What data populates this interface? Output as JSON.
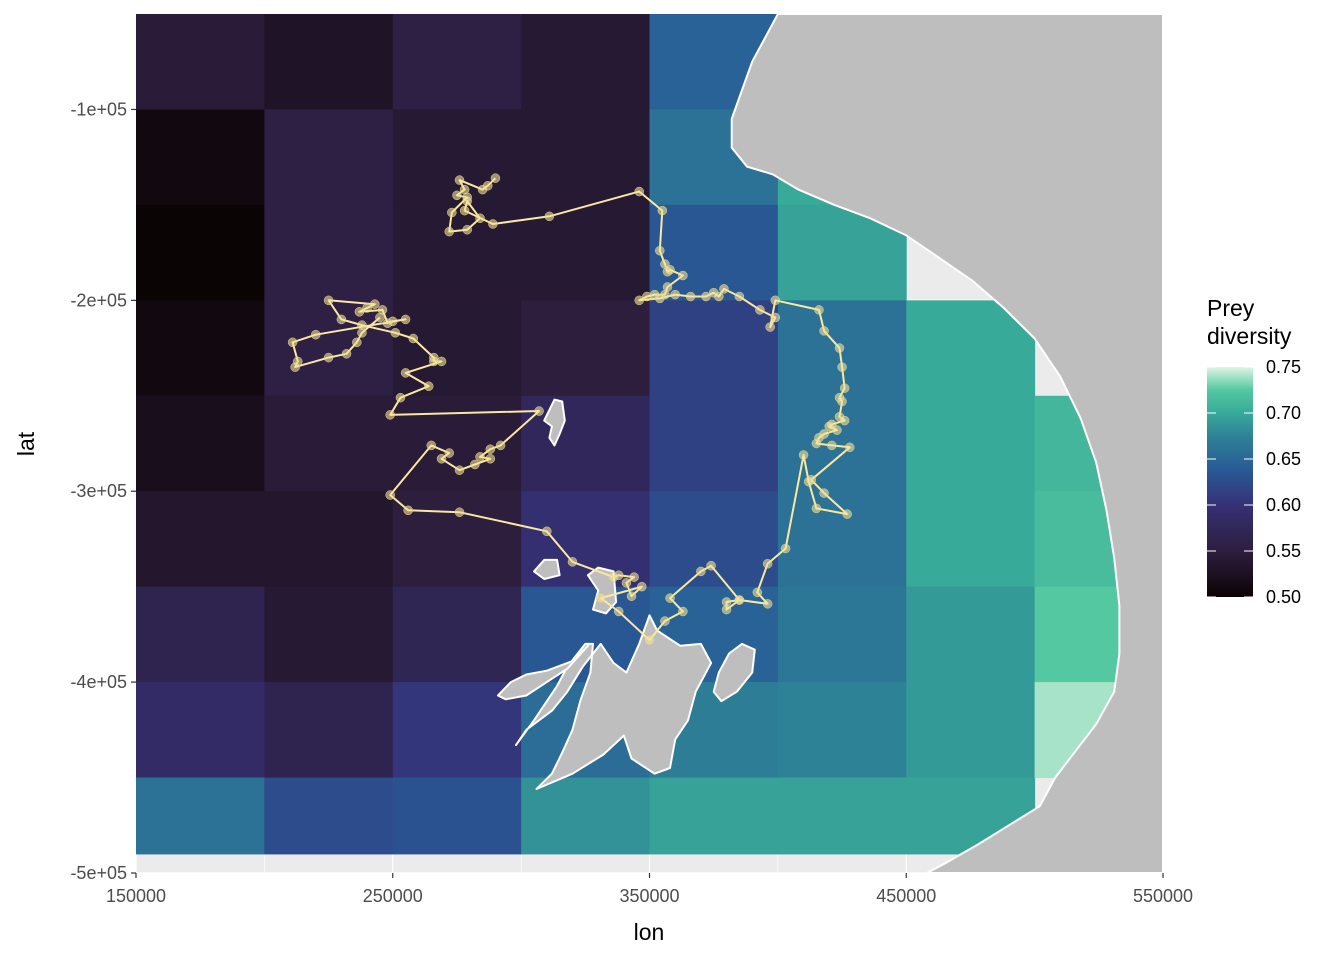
{
  "chart_data": {
    "type": "heatmap",
    "xlabel": "lon",
    "ylabel": "lat",
    "xlim": [
      150000,
      550000
    ],
    "ylim": [
      -500000,
      -50000
    ],
    "x_ticks": [
      150000,
      250000,
      350000,
      450000,
      550000
    ],
    "x_tick_labels": [
      "150000",
      "250000",
      "350000",
      "450000",
      "550000"
    ],
    "y_ticks": [
      -100000,
      -200000,
      -300000,
      -400000,
      -500000
    ],
    "y_tick_labels": [
      "-1e+05",
      "-2e+05",
      "-3e+05",
      "-4e+05",
      "-5e+05"
    ],
    "grid": true,
    "legend": {
      "title": "Prey\ndiversity",
      "position": "right",
      "breaks": [
        0.75,
        0.7,
        0.65,
        0.6,
        0.55,
        0.5
      ],
      "labels": [
        "0.75",
        "0.70",
        "0.65",
        "0.60",
        "0.55",
        "0.50"
      ],
      "range": [
        0.5,
        0.75
      ],
      "palette": "mako"
    },
    "raster": {
      "x_edges": [
        150000,
        200000,
        250000,
        300000,
        350000,
        400000,
        450000,
        500000
      ],
      "y_edges": [
        -50000,
        -100000,
        -150000,
        -200000,
        -250000,
        -300000,
        -350000,
        -400000,
        -450000,
        -490000
      ],
      "values": [
        [
          0.545,
          0.53,
          0.555,
          0.54,
          0.645,
          0.7,
          null
        ],
        [
          0.51,
          0.555,
          0.54,
          0.54,
          0.66,
          0.7,
          null
        ],
        [
          0.5,
          0.555,
          0.54,
          0.54,
          0.635,
          0.695,
          null
        ],
        [
          0.51,
          0.555,
          0.54,
          0.55,
          0.615,
          0.66,
          0.7
        ],
        [
          0.52,
          0.545,
          0.545,
          0.575,
          0.615,
          0.66,
          0.7
        ],
        [
          0.535,
          0.535,
          0.55,
          0.595,
          0.625,
          0.66,
          0.7
        ],
        [
          0.565,
          0.54,
          0.57,
          0.635,
          0.645,
          0.665,
          0.69
        ],
        [
          0.585,
          0.565,
          0.605,
          0.655,
          0.67,
          0.675,
          0.69
        ],
        [
          0.66,
          0.625,
          0.63,
          0.685,
          0.695,
          0.695,
          0.695
        ]
      ],
      "extra_cells": [
        {
          "x": [
            500000,
            550000
          ],
          "y": [
            -250000,
            -300000
          ],
          "value": 0.71
        },
        {
          "x": [
            500000,
            550000
          ],
          "y": [
            -300000,
            -350000
          ],
          "value": 0.715
        },
        {
          "x": [
            500000,
            550000
          ],
          "y": [
            -350000,
            -400000
          ],
          "value": 0.725
        },
        {
          "x": [
            500000,
            550000
          ],
          "y": [
            -400000,
            -450000
          ],
          "value": 0.74
        }
      ]
    },
    "land_polygons": [
      {
        "name": "coast",
        "points": [
          [
            400000,
            -50000
          ],
          [
            396000,
            -60000
          ],
          [
            390000,
            -75000
          ],
          [
            386000,
            -90000
          ],
          [
            382000,
            -105000
          ],
          [
            382000,
            -120000
          ],
          [
            388000,
            -130000
          ],
          [
            398000,
            -134000
          ],
          [
            408000,
            -142000
          ],
          [
            422000,
            -150000
          ],
          [
            436000,
            -157000
          ],
          [
            450000,
            -166000
          ],
          [
            462000,
            -177000
          ],
          [
            476000,
            -190000
          ],
          [
            488000,
            -204000
          ],
          [
            500000,
            -220000
          ],
          [
            510000,
            -240000
          ],
          [
            518000,
            -262000
          ],
          [
            524000,
            -285000
          ],
          [
            528000,
            -310000
          ],
          [
            531000,
            -335000
          ],
          [
            533000,
            -360000
          ],
          [
            533000,
            -385000
          ],
          [
            531000,
            -405000
          ],
          [
            524000,
            -422000
          ],
          [
            516000,
            -436000
          ],
          [
            508000,
            -450000
          ],
          [
            502000,
            -465000
          ],
          [
            490000,
            -475000
          ],
          [
            478000,
            -485000
          ],
          [
            465000,
            -495000
          ],
          [
            458000,
            -500000
          ],
          [
            550000,
            -500000
          ],
          [
            550000,
            -50000
          ]
        ]
      },
      {
        "name": "island-1",
        "points": [
          [
            313000,
            -252000
          ],
          [
            316000,
            -253000
          ],
          [
            317000,
            -263000
          ],
          [
            315000,
            -270000
          ],
          [
            313000,
            -276000
          ],
          [
            311000,
            -272000
          ],
          [
            312000,
            -266000
          ],
          [
            309000,
            -263000
          ]
        ]
      },
      {
        "name": "island-2",
        "points": [
          [
            309000,
            -336000
          ],
          [
            314000,
            -336000
          ],
          [
            315000,
            -344000
          ],
          [
            309000,
            -346000
          ],
          [
            305000,
            -342000
          ]
        ]
      },
      {
        "name": "island-3",
        "points": [
          [
            330000,
            -340000
          ],
          [
            336000,
            -342000
          ],
          [
            337000,
            -358000
          ],
          [
            333000,
            -364000
          ],
          [
            328000,
            -362000
          ],
          [
            330000,
            -352000
          ],
          [
            326000,
            -344000
          ]
        ]
      },
      {
        "name": "island-4",
        "points": [
          [
            325000,
            -380000
          ],
          [
            328000,
            -380000
          ],
          [
            327000,
            -395000
          ],
          [
            323000,
            -410000
          ],
          [
            320000,
            -425000
          ],
          [
            316000,
            -437000
          ],
          [
            312000,
            -448000
          ],
          [
            306000,
            -456000
          ],
          [
            320000,
            -448000
          ],
          [
            332000,
            -438000
          ],
          [
            340000,
            -428000
          ],
          [
            343000,
            -440000
          ],
          [
            352000,
            -448000
          ],
          [
            358000,
            -445000
          ],
          [
            360000,
            -430000
          ],
          [
            365000,
            -420000
          ],
          [
            368000,
            -405000
          ],
          [
            374000,
            -390000
          ],
          [
            370000,
            -380000
          ],
          [
            362000,
            -381000
          ],
          [
            353000,
            -373000
          ],
          [
            350000,
            -365000
          ],
          [
            346000,
            -380000
          ],
          [
            341000,
            -395000
          ],
          [
            336000,
            -390000
          ],
          [
            331000,
            -380000
          ],
          [
            324000,
            -392000
          ],
          [
            318000,
            -405000
          ],
          [
            312000,
            -415000
          ],
          [
            302000,
            -425000
          ],
          [
            298000,
            -433000
          ],
          [
            305000,
            -420000
          ],
          [
            314000,
            -402000
          ],
          [
            318000,
            -392000
          ]
        ]
      },
      {
        "name": "island-5",
        "points": [
          [
            326000,
            -381000
          ],
          [
            320000,
            -389000
          ],
          [
            310000,
            -394000
          ],
          [
            302000,
            -396000
          ],
          [
            296000,
            -400000
          ],
          [
            291000,
            -407000
          ],
          [
            294000,
            -409000
          ],
          [
            302000,
            -407000
          ],
          [
            310000,
            -400000
          ],
          [
            318000,
            -393000
          ]
        ]
      },
      {
        "name": "island-6",
        "points": [
          [
            386000,
            -380000
          ],
          [
            391000,
            -383000
          ],
          [
            390000,
            -395000
          ],
          [
            384000,
            -405000
          ],
          [
            378000,
            -410000
          ],
          [
            375000,
            -405000
          ],
          [
            377000,
            -395000
          ],
          [
            381000,
            -385000
          ]
        ]
      }
    ],
    "track": [
      [
        290000,
        -136000
      ],
      [
        287000,
        -140000
      ],
      [
        285000,
        -142000
      ],
      [
        276000,
        -137000
      ],
      [
        278000,
        -142000
      ],
      [
        275000,
        -145000
      ],
      [
        279000,
        -146000
      ],
      [
        273000,
        -154000
      ],
      [
        272000,
        -164000
      ],
      [
        279000,
        -163000
      ],
      [
        284000,
        -157000
      ],
      [
        279000,
        -148000
      ],
      [
        278000,
        -153000
      ],
      [
        289000,
        -160000
      ],
      [
        311000,
        -156000
      ],
      [
        346000,
        -143000
      ],
      [
        355000,
        -153000
      ],
      [
        354000,
        -174000
      ],
      [
        356000,
        -181000
      ],
      [
        357000,
        -185000
      ],
      [
        358000,
        -184000
      ],
      [
        363000,
        -187000
      ],
      [
        357000,
        -193000
      ],
      [
        356000,
        -197000
      ],
      [
        352000,
        -197000
      ],
      [
        349000,
        -198000
      ],
      [
        346000,
        -200000
      ],
      [
        354000,
        -199000
      ],
      [
        360000,
        -197000
      ],
      [
        366000,
        -198000
      ],
      [
        372000,
        -198000
      ],
      [
        375000,
        -196000
      ],
      [
        377000,
        -198000
      ],
      [
        379000,
        -194000
      ],
      [
        385000,
        -198000
      ],
      [
        393000,
        -205000
      ],
      [
        399000,
        -209000
      ],
      [
        397000,
        -214000
      ],
      [
        399000,
        -200000
      ],
      [
        416000,
        -205000
      ],
      [
        418000,
        -216000
      ],
      [
        424000,
        -225000
      ],
      [
        425000,
        -235000
      ],
      [
        426000,
        -246000
      ],
      [
        424000,
        -251000
      ],
      [
        425000,
        -253000
      ],
      [
        424000,
        -261000
      ],
      [
        426000,
        -263000
      ],
      [
        421000,
        -265000
      ],
      [
        420000,
        -266000
      ],
      [
        423000,
        -268000
      ],
      [
        418000,
        -270000
      ],
      [
        416000,
        -272000
      ],
      [
        415000,
        -275000
      ],
      [
        421000,
        -276000
      ],
      [
        428000,
        -277000
      ],
      [
        413000,
        -294000
      ],
      [
        418000,
        -301000
      ],
      [
        427000,
        -312000
      ],
      [
        415000,
        -309000
      ],
      [
        412000,
        -295000
      ],
      [
        410000,
        -281000
      ],
      [
        403000,
        -330000
      ],
      [
        396000,
        -338000
      ],
      [
        392000,
        -353000
      ],
      [
        396000,
        -359000
      ],
      [
        385000,
        -357000
      ],
      [
        380000,
        -358000
      ],
      [
        380000,
        -362000
      ],
      [
        385000,
        -357000
      ],
      [
        374000,
        -339000
      ],
      [
        370000,
        -342000
      ],
      [
        358000,
        -356000
      ],
      [
        363000,
        -363000
      ],
      [
        356000,
        -368000
      ],
      [
        350000,
        -378000
      ],
      [
        338000,
        -363000
      ],
      [
        331000,
        -356000
      ],
      [
        347000,
        -350000
      ],
      [
        343000,
        -355000
      ],
      [
        341000,
        -348000
      ],
      [
        344000,
        -345000
      ],
      [
        338000,
        -344000
      ],
      [
        336000,
        -345000
      ],
      [
        320000,
        -337000
      ],
      [
        310000,
        -321000
      ],
      [
        276000,
        -311000
      ],
      [
        256000,
        -310000
      ],
      [
        249000,
        -302000
      ],
      [
        265000,
        -276000
      ],
      [
        272000,
        -280000
      ],
      [
        269000,
        -283000
      ],
      [
        276000,
        -289000
      ],
      [
        282000,
        -286000
      ],
      [
        288000,
        -283000
      ],
      [
        284000,
        -282000
      ],
      [
        288000,
        -278000
      ],
      [
        292000,
        -276000
      ],
      [
        307000,
        -258000
      ],
      [
        249000,
        -260000
      ],
      [
        253000,
        -251000
      ],
      [
        264000,
        -245000
      ],
      [
        255000,
        -238000
      ],
      [
        269000,
        -232000
      ],
      [
        266000,
        -232000
      ],
      [
        266000,
        -230000
      ],
      [
        258000,
        -220000
      ],
      [
        251000,
        -217000
      ],
      [
        238000,
        -213000
      ],
      [
        230000,
        -210000
      ],
      [
        225000,
        -200000
      ],
      [
        243000,
        -202000
      ],
      [
        240000,
        -204000
      ],
      [
        237000,
        -206000
      ],
      [
        246000,
        -205000
      ],
      [
        248000,
        -212000
      ],
      [
        250000,
        -211000
      ],
      [
        255000,
        -210000
      ],
      [
        220000,
        -218000
      ],
      [
        211000,
        -222000
      ],
      [
        213000,
        -232000
      ],
      [
        212000,
        -235000
      ],
      [
        225000,
        -230000
      ],
      [
        232000,
        -228000
      ],
      [
        236000,
        -222000
      ],
      [
        238000,
        -217000
      ],
      [
        245000,
        -209000
      ]
    ]
  }
}
